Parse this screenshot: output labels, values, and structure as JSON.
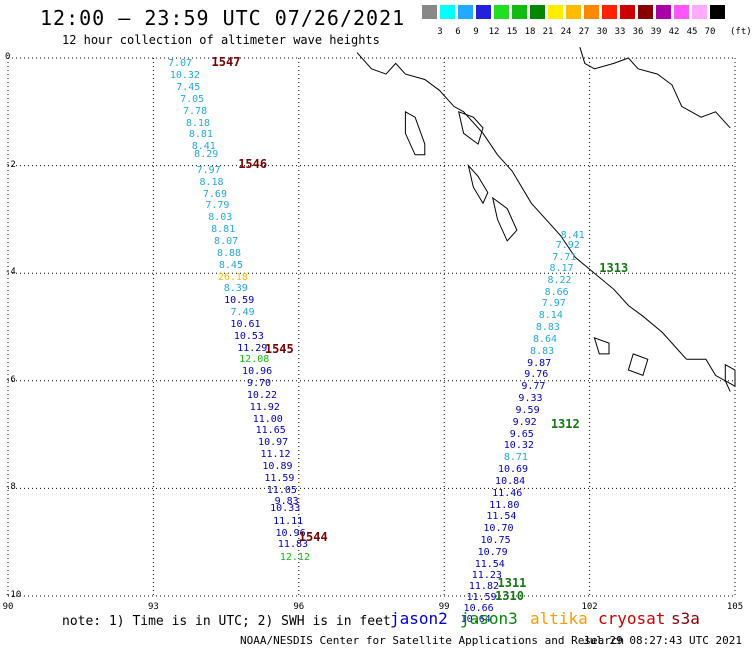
{
  "header": {
    "title": "12:00 – 23:59 UTC 07/26/2021",
    "subtitle": "12 hour collection of altimeter wave heights"
  },
  "color_scale": {
    "unit": "(ft)",
    "bins": [
      {
        "label": "3",
        "color": "#888888"
      },
      {
        "label": "6",
        "color": "#00ffff"
      },
      {
        "label": "9",
        "color": "#22aaff"
      },
      {
        "label": "12",
        "color": "#2222dd"
      },
      {
        "label": "15",
        "color": "#22dd22"
      },
      {
        "label": "18",
        "color": "#11bb11"
      },
      {
        "label": "21",
        "color": "#008800"
      },
      {
        "label": "24",
        "color": "#ffee00"
      },
      {
        "label": "27",
        "color": "#ffbb00"
      },
      {
        "label": "30",
        "color": "#ff8800"
      },
      {
        "label": "33",
        "color": "#ff2200"
      },
      {
        "label": "36",
        "color": "#cc0000"
      },
      {
        "label": "39",
        "color": "#880000"
      },
      {
        "label": "42",
        "color": "#aa00aa"
      },
      {
        "label": "45",
        "color": "#ff55ff"
      },
      {
        "label": "70",
        "color": "#ffaaff"
      },
      {
        "label": "",
        "color": "#000000"
      }
    ]
  },
  "map": {
    "lon_range": [
      90,
      105
    ],
    "lat_range": [
      -10,
      0
    ],
    "lon_ticks": [
      "90",
      "93",
      "96",
      "99",
      "102",
      "105"
    ],
    "lat_ticks": [
      "0",
      "-2",
      "-4",
      "-6",
      "-8",
      "-10"
    ],
    "grid": true,
    "coastline": "Sumatra (west coast) and Mentawai/Nias islands"
  },
  "passes": [
    {
      "id": "1547",
      "satellite": "cryosat",
      "lon": 94.2,
      "lat": -0.08
    },
    {
      "id": "1546",
      "satellite": "cryosat",
      "lon": 94.75,
      "lat": -1.97
    },
    {
      "id": "1545",
      "satellite": "cryosat",
      "lon": 95.3,
      "lat": -5.4
    },
    {
      "id": "1544",
      "satellite": "cryosat",
      "lon": 96.0,
      "lat": -8.9
    },
    {
      "id": "1313",
      "satellite": "jason3",
      "lon": 102.2,
      "lat": -3.9
    },
    {
      "id": "1312",
      "satellite": "jason3",
      "lon": 101.2,
      "lat": -6.8
    },
    {
      "id": "1311",
      "satellite": "jason3",
      "lon": 100.1,
      "lat": -9.75
    },
    {
      "id": "1310",
      "satellite": "jason3",
      "lon": 100.05,
      "lat": -10.0
    }
  ],
  "observations": [
    {
      "v": "7.07",
      "lon": 93.55,
      "lat": -0.12,
      "sat": "s3a"
    },
    {
      "v": "10.32",
      "lon": 93.65,
      "lat": -0.34,
      "sat": "s3a"
    },
    {
      "v": "7.45",
      "lon": 93.72,
      "lat": -0.56,
      "sat": "s3a"
    },
    {
      "v": "7.05",
      "lon": 93.8,
      "lat": -0.78,
      "sat": "s3a"
    },
    {
      "v": "7.78",
      "lon": 93.86,
      "lat": -1.0,
      "sat": "s3a"
    },
    {
      "v": "8.18",
      "lon": 93.92,
      "lat": -1.22,
      "sat": "s3a"
    },
    {
      "v": "8.81",
      "lon": 93.98,
      "lat": -1.44,
      "sat": "s3a"
    },
    {
      "v": "8.41",
      "lon": 94.04,
      "lat": -1.66,
      "sat": "s3a"
    },
    {
      "v": "8.29",
      "lon": 94.09,
      "lat": -1.8,
      "sat": "s3a"
    },
    {
      "v": "7.97",
      "lon": 94.14,
      "lat": -2.1,
      "sat": "s3a"
    },
    {
      "v": "8.18",
      "lon": 94.2,
      "lat": -2.32,
      "sat": "s3a"
    },
    {
      "v": "7.69",
      "lon": 94.27,
      "lat": -2.54,
      "sat": "s3a"
    },
    {
      "v": "7.79",
      "lon": 94.32,
      "lat": -2.76,
      "sat": "s3a"
    },
    {
      "v": "8.03",
      "lon": 94.38,
      "lat": -2.98,
      "sat": "s3a"
    },
    {
      "v": "8.81",
      "lon": 94.44,
      "lat": -3.2,
      "sat": "s3a"
    },
    {
      "v": "8.07",
      "lon": 94.5,
      "lat": -3.42,
      "sat": "s3a"
    },
    {
      "v": "8.88",
      "lon": 94.56,
      "lat": -3.64,
      "sat": "s3a"
    },
    {
      "v": "8.45",
      "lon": 94.6,
      "lat": -3.86,
      "sat": "s3a"
    },
    {
      "v": "26.18",
      "lon": 94.64,
      "lat": -4.08,
      "sat": "altika"
    },
    {
      "v": "8.39",
      "lon": 94.7,
      "lat": -4.3,
      "sat": "s3a"
    },
    {
      "v": "10.59",
      "lon": 94.77,
      "lat": -4.52,
      "sat": "jason2"
    },
    {
      "v": "7.49",
      "lon": 94.84,
      "lat": -4.74,
      "sat": "s3a"
    },
    {
      "v": "10.61",
      "lon": 94.9,
      "lat": -4.96,
      "sat": "jason2"
    },
    {
      "v": "10.53",
      "lon": 94.97,
      "lat": -5.18,
      "sat": "jason2"
    },
    {
      "v": "11.29",
      "lon": 95.04,
      "lat": -5.4,
      "sat": "jason2"
    },
    {
      "v": "12.08",
      "lon": 95.08,
      "lat": -5.62,
      "sat": "jason3"
    },
    {
      "v": "10.96",
      "lon": 95.14,
      "lat": -5.84,
      "sat": "jason2"
    },
    {
      "v": "9.70",
      "lon": 95.18,
      "lat": -6.06,
      "sat": "jason2"
    },
    {
      "v": "10.22",
      "lon": 95.24,
      "lat": -6.28,
      "sat": "jason2"
    },
    {
      "v": "11.92",
      "lon": 95.3,
      "lat": -6.5,
      "sat": "jason2"
    },
    {
      "v": "11.00",
      "lon": 95.36,
      "lat": -6.72,
      "sat": "jason2"
    },
    {
      "v": "11.65",
      "lon": 95.42,
      "lat": -6.94,
      "sat": "jason2"
    },
    {
      "v": "10.97",
      "lon": 95.47,
      "lat": -7.16,
      "sat": "jason2"
    },
    {
      "v": "11.12",
      "lon": 95.52,
      "lat": -7.38,
      "sat": "jason2"
    },
    {
      "v": "10.89",
      "lon": 95.56,
      "lat": -7.6,
      "sat": "jason2"
    },
    {
      "v": "11.59",
      "lon": 95.6,
      "lat": -7.82,
      "sat": "jason2"
    },
    {
      "v": "11.05",
      "lon": 95.65,
      "lat": -8.04,
      "sat": "jason2"
    },
    {
      "v": "9.83",
      "lon": 95.75,
      "lat": -8.26,
      "sat": "jason2"
    },
    {
      "v": "10.33",
      "lon": 95.72,
      "lat": -8.38,
      "sat": "jason2"
    },
    {
      "v": "11.11",
      "lon": 95.78,
      "lat": -8.62,
      "sat": "jason2"
    },
    {
      "v": "10.96",
      "lon": 95.83,
      "lat": -8.84,
      "sat": "jason2"
    },
    {
      "v": "11.83",
      "lon": 95.88,
      "lat": -9.06,
      "sat": "jason2"
    },
    {
      "v": "12.12",
      "lon": 95.92,
      "lat": -9.3,
      "sat": "jason3"
    },
    {
      "v": "8.41",
      "lon": 101.65,
      "lat": -3.3,
      "sat": "s3a"
    },
    {
      "v": "7.92",
      "lon": 101.55,
      "lat": -3.5,
      "sat": "s3a"
    },
    {
      "v": "7.71",
      "lon": 101.48,
      "lat": -3.72,
      "sat": "s3a"
    },
    {
      "v": "8.17",
      "lon": 101.42,
      "lat": -3.93,
      "sat": "s3a"
    },
    {
      "v": "8.22",
      "lon": 101.38,
      "lat": -4.14,
      "sat": "s3a"
    },
    {
      "v": "8.66",
      "lon": 101.32,
      "lat": -4.36,
      "sat": "s3a"
    },
    {
      "v": "7.97",
      "lon": 101.26,
      "lat": -4.58,
      "sat": "s3a"
    },
    {
      "v": "8.14",
      "lon": 101.2,
      "lat": -4.8,
      "sat": "s3a"
    },
    {
      "v": "8.83",
      "lon": 101.14,
      "lat": -5.02,
      "sat": "s3a"
    },
    {
      "v": "8.64",
      "lon": 101.08,
      "lat": -5.24,
      "sat": "s3a"
    },
    {
      "v": "8.83",
      "lon": 101.02,
      "lat": -5.46,
      "sat": "s3a"
    },
    {
      "v": "9.87",
      "lon": 100.96,
      "lat": -5.68,
      "sat": "jason2"
    },
    {
      "v": "9.76",
      "lon": 100.9,
      "lat": -5.9,
      "sat": "jason2"
    },
    {
      "v": "9.77",
      "lon": 100.84,
      "lat": -6.12,
      "sat": "jason2"
    },
    {
      "v": "9.33",
      "lon": 100.78,
      "lat": -6.34,
      "sat": "jason2"
    },
    {
      "v": "9.59",
      "lon": 100.72,
      "lat": -6.56,
      "sat": "jason2"
    },
    {
      "v": "9.92",
      "lon": 100.66,
      "lat": -6.78,
      "sat": "jason2"
    },
    {
      "v": "9.65",
      "lon": 100.6,
      "lat": -7.0,
      "sat": "jason2"
    },
    {
      "v": "10.32",
      "lon": 100.54,
      "lat": -7.22,
      "sat": "jason2"
    },
    {
      "v": "8.71",
      "lon": 100.48,
      "lat": -7.44,
      "sat": "s3a"
    },
    {
      "v": "10.69",
      "lon": 100.42,
      "lat": -7.66,
      "sat": "jason2"
    },
    {
      "v": "10.84",
      "lon": 100.36,
      "lat": -7.88,
      "sat": "jason2"
    },
    {
      "v": "11.46",
      "lon": 100.3,
      "lat": -8.1,
      "sat": "jason2"
    },
    {
      "v": "11.80",
      "lon": 100.24,
      "lat": -8.32,
      "sat": "jason2"
    },
    {
      "v": "11.54",
      "lon": 100.18,
      "lat": -8.54,
      "sat": "jason2"
    },
    {
      "v": "10.70",
      "lon": 100.12,
      "lat": -8.76,
      "sat": "jason2"
    },
    {
      "v": "10.75",
      "lon": 100.06,
      "lat": -8.98,
      "sat": "jason2"
    },
    {
      "v": "10.79",
      "lon": 100.0,
      "lat": -9.2,
      "sat": "jason2"
    },
    {
      "v": "11.54",
      "lon": 99.94,
      "lat": -9.42,
      "sat": "jason2"
    },
    {
      "v": "11.23",
      "lon": 99.88,
      "lat": -9.62,
      "sat": "jason2"
    },
    {
      "v": "11.82",
      "lon": 99.82,
      "lat": -9.83,
      "sat": "jason2"
    },
    {
      "v": "11.59",
      "lon": 99.77,
      "lat": -10.03,
      "sat": "jason2"
    },
    {
      "v": "10.66",
      "lon": 99.71,
      "lat": -10.24,
      "sat": "jason2"
    },
    {
      "v": "10.64",
      "lon": 99.65,
      "lat": -10.45,
      "sat": "jason2"
    }
  ],
  "footer": {
    "note": "note: 1) Time is in UTC; 2) SWH is in feet",
    "satellites": [
      {
        "label": "jason2",
        "color": "#0000cc"
      },
      {
        "label": "jason3",
        "color": "#008800"
      },
      {
        "label": "altika",
        "color": "#ff9900"
      },
      {
        "label": "cryosat",
        "color": "#cc0000"
      },
      {
        "label": "s3a",
        "color": "#880000"
      }
    ],
    "credit": "NOAA/NESDIS Center for Satellite Applications and Research",
    "timestamp": "Jul 29 08:27:43 UTC 2021"
  },
  "sat_colors": {
    "s3a": "#22aadd",
    "jason2": "#0000bb",
    "jason3": "#11bb11",
    "altika": "#ffbb00",
    "cryosat": "#660000"
  }
}
